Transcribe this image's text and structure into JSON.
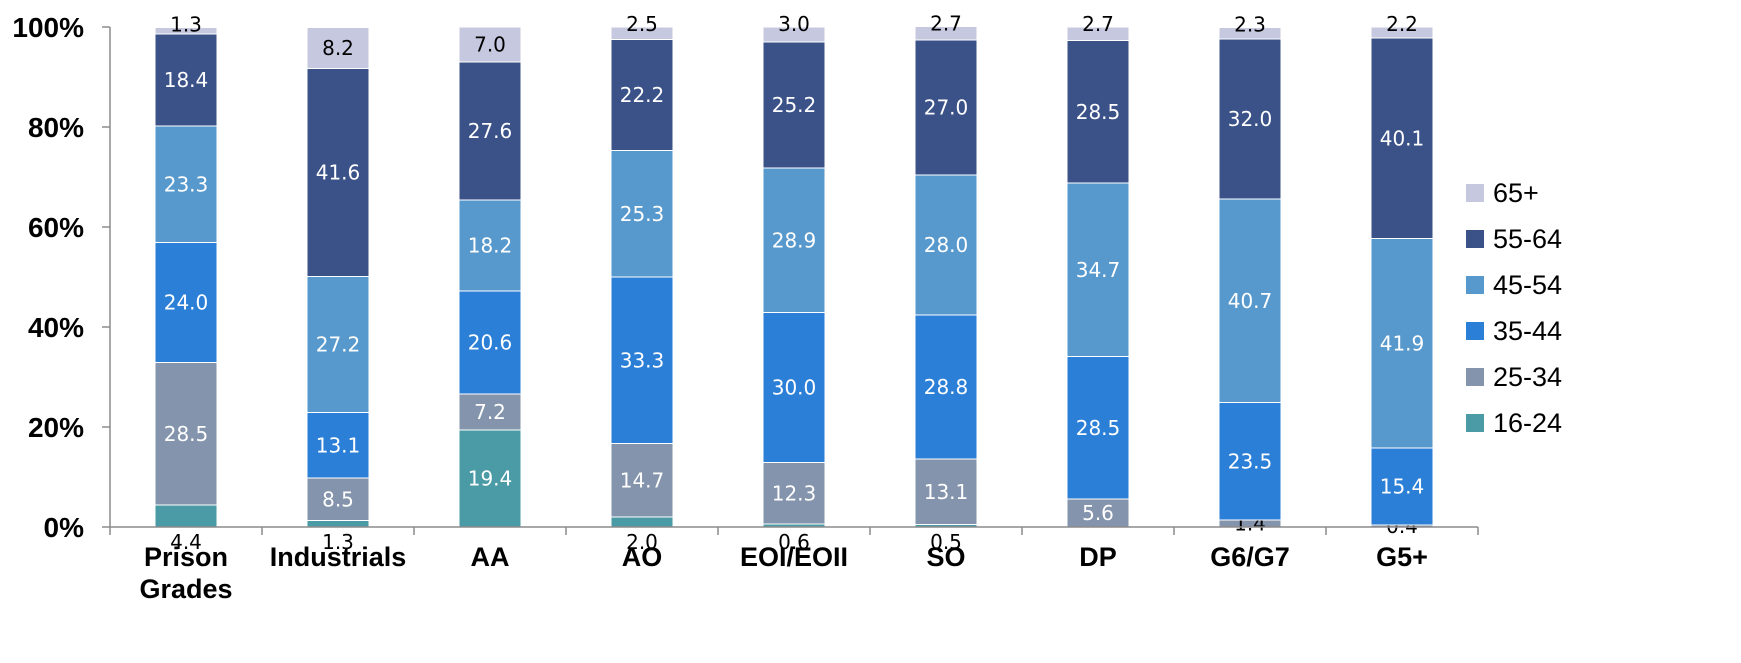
{
  "chart_data": {
    "type": "bar",
    "stacked": true,
    "percent": true,
    "categories": [
      "Prison Grades",
      "Industrials",
      "AA",
      "AO",
      "EOI/EOII",
      "SO",
      "DP",
      "G6/G7",
      "G5+"
    ],
    "series": [
      {
        "name": "16-24",
        "color": "#4a9ba6",
        "values": [
          4.4,
          1.3,
          19.4,
          2.0,
          0.6,
          0.5,
          0,
          0,
          0
        ]
      },
      {
        "name": "25-34",
        "color": "#8494ad",
        "values": [
          28.5,
          8.5,
          7.2,
          14.7,
          12.3,
          13.1,
          5.6,
          1.4,
          0.4
        ]
      },
      {
        "name": "35-44",
        "color": "#2b7fd6",
        "values": [
          24.0,
          13.1,
          20.6,
          33.3,
          30.0,
          28.8,
          28.5,
          23.5,
          15.4
        ]
      },
      {
        "name": "45-54",
        "color": "#5899cd",
        "values": [
          23.3,
          27.2,
          18.2,
          25.3,
          28.9,
          28.0,
          34.7,
          40.7,
          41.9
        ]
      },
      {
        "name": "55-64",
        "color": "#3b5289",
        "values": [
          18.4,
          41.6,
          27.6,
          22.2,
          25.2,
          27.0,
          28.5,
          32.0,
          40.1
        ]
      },
      {
        "name": "65+",
        "color": "#c5c8de",
        "values": [
          1.3,
          8.2,
          7.0,
          2.5,
          3.0,
          2.7,
          2.7,
          2.3,
          2.2
        ]
      }
    ],
    "yticks": [
      "0%",
      "20%",
      "40%",
      "60%",
      "80%",
      "100%"
    ],
    "ylim": [
      0,
      100
    ],
    "grid": false,
    "legend": "right"
  }
}
